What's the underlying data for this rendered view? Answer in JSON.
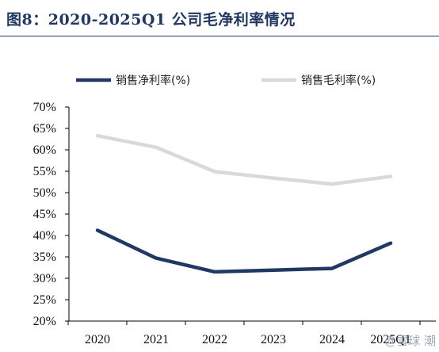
{
  "title": "图8：2020-2025Q1 公司毛净利率情况",
  "watermark": "@雪球 潮",
  "colors": {
    "title": "#1f3864",
    "net": "#1f3864",
    "gross": "#d9d9d9"
  },
  "chart_data": {
    "type": "line",
    "categories": [
      "2020",
      "2021",
      "2022",
      "2023",
      "2024",
      "2025Q1"
    ],
    "series": [
      {
        "name": "销售净利率(%)",
        "values": [
          41.2,
          34.7,
          31.5,
          31.9,
          32.3,
          38.2
        ]
      },
      {
        "name": "销售毛利率(%)",
        "values": [
          63.3,
          60.6,
          54.9,
          53.4,
          52.0,
          53.8
        ]
      }
    ],
    "ylim": [
      20,
      70
    ],
    "yticks": [
      "70%",
      "65%",
      "60%",
      "55%",
      "50%",
      "45%",
      "40%",
      "35%",
      "30%",
      "25%",
      "20%"
    ],
    "legend": "top",
    "grid": false
  }
}
